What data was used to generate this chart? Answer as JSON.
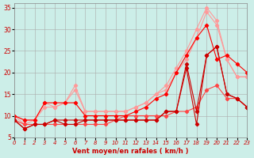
{
  "background_color": "#cceee8",
  "grid_color": "#aaaaaa",
  "xlabel": "Vent moyen/en rafales ( km/h )",
  "xlim": [
    0,
    23
  ],
  "ylim": [
    5,
    36
  ],
  "yticks": [
    5,
    10,
    15,
    20,
    25,
    30,
    35
  ],
  "xticks": [
    0,
    1,
    2,
    3,
    4,
    5,
    6,
    7,
    8,
    9,
    10,
    11,
    12,
    13,
    14,
    15,
    16,
    17,
    18,
    19,
    20,
    21,
    22,
    23
  ],
  "series": [
    {
      "color": "#ff9999",
      "x": [
        0,
        1,
        2,
        3,
        4,
        5,
        6,
        7,
        8,
        9,
        10,
        11,
        12,
        13,
        14,
        15,
        16,
        17,
        18,
        19,
        20,
        21,
        22,
        23
      ],
      "y": [
        10,
        9,
        9,
        13,
        12,
        13,
        17,
        11,
        11,
        11,
        11,
        11,
        12,
        13,
        15,
        17,
        21,
        25,
        30,
        35,
        32,
        23,
        19,
        19
      ]
    },
    {
      "color": "#ff9999",
      "x": [
        0,
        1,
        2,
        3,
        4,
        5,
        6,
        7,
        8,
        9,
        10,
        11,
        12,
        13,
        14,
        15,
        16,
        17,
        18,
        19,
        20,
        21,
        22,
        23
      ],
      "y": [
        10,
        8,
        9,
        12,
        12,
        13,
        16,
        11,
        11,
        11,
        11,
        11,
        12,
        13,
        15,
        16,
        20,
        23,
        28,
        34,
        31,
        23,
        19,
        19
      ]
    },
    {
      "color": "#ff4444",
      "x": [
        0,
        1,
        2,
        3,
        4,
        5,
        6,
        7,
        8,
        9,
        10,
        11,
        12,
        13,
        14,
        15,
        16,
        17,
        18,
        19,
        20,
        21,
        22,
        23
      ],
      "y": [
        9,
        8,
        8,
        8,
        8,
        8,
        8,
        8,
        8,
        8,
        9,
        10,
        10,
        10,
        10,
        10,
        11,
        11,
        12,
        16,
        17,
        14,
        14,
        12
      ]
    },
    {
      "color": "#cc0000",
      "x": [
        0,
        1,
        2,
        3,
        4,
        5,
        6,
        7,
        8,
        9,
        10,
        11,
        12,
        13,
        14,
        15,
        16,
        17,
        18,
        19,
        20,
        21,
        22,
        23
      ],
      "y": [
        9,
        7,
        8,
        8,
        9,
        9,
        9,
        9,
        9,
        9,
        9,
        9,
        9,
        9,
        9,
        11,
        11,
        22,
        11,
        24,
        26,
        15,
        14,
        12
      ]
    },
    {
      "color": "#cc0000",
      "x": [
        0,
        1,
        2,
        3,
        4,
        5,
        6,
        7,
        8,
        9,
        10,
        11,
        12,
        13,
        14,
        15,
        16,
        17,
        18,
        19,
        20,
        21,
        22,
        23
      ],
      "y": [
        9,
        7,
        8,
        8,
        9,
        8,
        8,
        9,
        9,
        9,
        9,
        9,
        9,
        9,
        9,
        11,
        11,
        21,
        8,
        24,
        26,
        15,
        14,
        12
      ]
    },
    {
      "color": "#ff0000",
      "x": [
        0,
        1,
        2,
        3,
        4,
        5,
        6,
        7,
        8,
        9,
        10,
        11,
        12,
        13,
        14,
        15,
        16,
        17,
        18,
        19,
        20,
        21,
        22,
        23
      ],
      "y": [
        10,
        9,
        9,
        13,
        13,
        13,
        13,
        10,
        10,
        10,
        10,
        10,
        11,
        12,
        14,
        15,
        20,
        24,
        28,
        31,
        23,
        24,
        22,
        20
      ]
    }
  ]
}
